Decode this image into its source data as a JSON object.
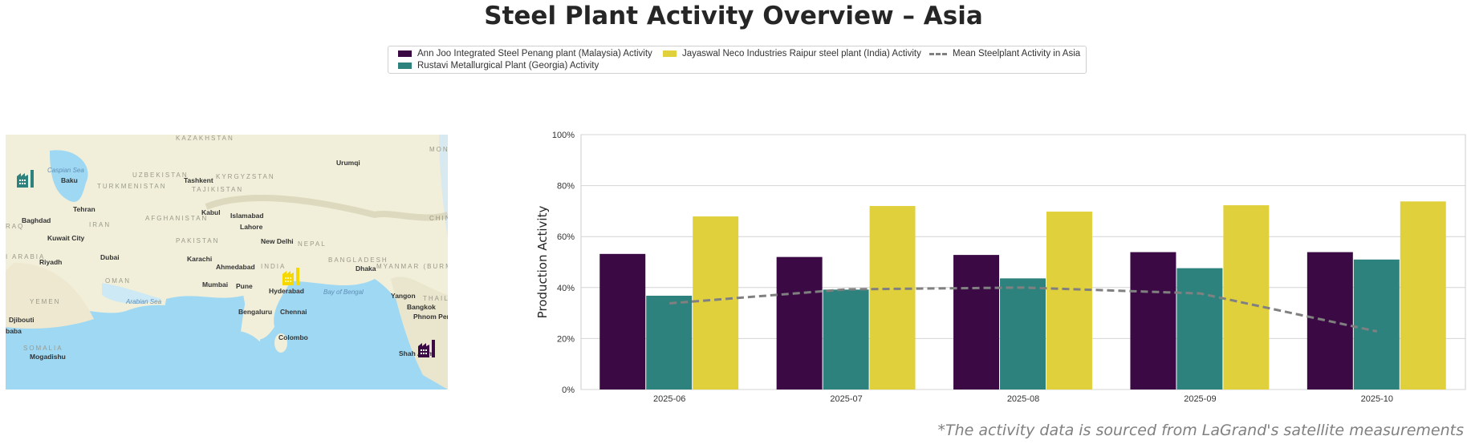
{
  "title": "Steel Plant Activity Overview – Asia",
  "legend": {
    "items": [
      {
        "label": "Ann Joo Integrated Steel Penang plant (Malaysia) Activity",
        "color": "#3b0a45"
      },
      {
        "label": "Rustavi Metallurgical Plant (Georgia) Activity",
        "color": "#2e827d"
      },
      {
        "label": "Jayaswal Neco Industries Raipur steel plant (India) Activity",
        "color": "#e0d03c"
      },
      {
        "label": "Mean Steelplant Activity in Asia",
        "color": "#808080"
      }
    ]
  },
  "map": {
    "labels": {
      "kazakhstan": "KAZAKHSTAN",
      "urumqi": "Urumqi",
      "uzbekistan": "UZBEKISTAN",
      "kyrgyzstan": "KYRGYZSTAN",
      "tashkent": "Tashkent",
      "turkmenistan": "TURKMENISTAN",
      "tajikistan": "TAJIKISTAN",
      "baku": "Baku",
      "caspian": "Caspian Sea",
      "tehran": "Tehran",
      "baghdad": "Baghdad",
      "iraq": "RAQ",
      "iran": "IRAN",
      "afghanistan": "AFGHANISTAN",
      "kabul": "Kabul",
      "islamabad": "Islamabad",
      "lahore": "Lahore",
      "kuwait": "Kuwait City",
      "pakistan": "PAKISTAN",
      "newdelhi": "New Delhi",
      "nepal": "NEPAL",
      "arabia": "I ARABIA",
      "riyadh": "Riyadh",
      "dubai": "Dubai",
      "karachi": "Karachi",
      "ahmedabad": "Ahmedabad",
      "india": "INDIA",
      "bangladesh": "BANGLADESH",
      "dhaka": "Dhaka",
      "myanmar": "MYANMAR (BURMA)",
      "oman": "OMAN",
      "mumbai": "Mumbai",
      "pune": "Pune",
      "hyderabad": "Hyderabad",
      "bayofbengal": "Bay of Bengal",
      "yemen": "YEMEN",
      "arabiansea": "Arabian Sea",
      "yangon": "Yangon",
      "bengaluru": "Bengaluru",
      "chennai": "Chennai",
      "bangkok": "Bangkok",
      "thailand": "THAILA",
      "phnompenh": "Phnom Penh",
      "djibouti": "Djibouti",
      "ababa": "baba",
      "colombo": "Colombo",
      "somalia": "SOMALIA",
      "mogadishu": "Mogadishu",
      "shahalam": "Shah Alam",
      "china": "CHIN",
      "mon": "MON"
    },
    "markers": [
      {
        "plant": "Rustavi Metallurgical Plant (Georgia)",
        "icon": "factory-icon",
        "color": "#2e827d"
      },
      {
        "plant": "Jayaswal Neco Industries Raipur steel plant (India)",
        "icon": "factory-icon",
        "color": "#f5d800"
      },
      {
        "plant": "Ann Joo Integrated Steel Penang plant (Malaysia)",
        "icon": "factory-icon",
        "color": "#3b0a45"
      }
    ]
  },
  "chart_data": {
    "type": "bar",
    "categories": [
      "2025-06",
      "2025-07",
      "2025-08",
      "2025-09",
      "2025-10"
    ],
    "series": [
      {
        "name": "Ann Joo Integrated Steel Penang plant (Malaysia) Activity",
        "type": "bar",
        "color": "#3b0a45",
        "values": [
          53.2,
          52.0,
          52.8,
          53.9,
          53.9
        ]
      },
      {
        "name": "Rustavi Metallurgical Plant (Georgia) Activity",
        "type": "bar",
        "color": "#2e827d",
        "values": [
          36.8,
          39.2,
          43.6,
          47.6,
          51.0
        ]
      },
      {
        "name": "Jayaswal Neco Industries Raipur steel plant (India) Activity",
        "type": "bar",
        "color": "#e0d03c",
        "values": [
          67.9,
          72.0,
          69.8,
          72.3,
          73.8
        ]
      },
      {
        "name": "Mean Steelplant Activity in Asia",
        "type": "line",
        "style": "dashed",
        "color": "#808080",
        "values": [
          33.8,
          39.3,
          40.0,
          37.7,
          22.8
        ]
      }
    ],
    "ylabel": "Production Activity",
    "xlabel": "",
    "ylim": [
      0,
      100
    ],
    "yticks": [
      "0%",
      "20%",
      "40%",
      "60%",
      "80%",
      "100%"
    ],
    "grid": "horizontal",
    "legend_position": "top-center"
  },
  "footnote": "*The activity data is sourced from LaGrand's satellite measurements"
}
